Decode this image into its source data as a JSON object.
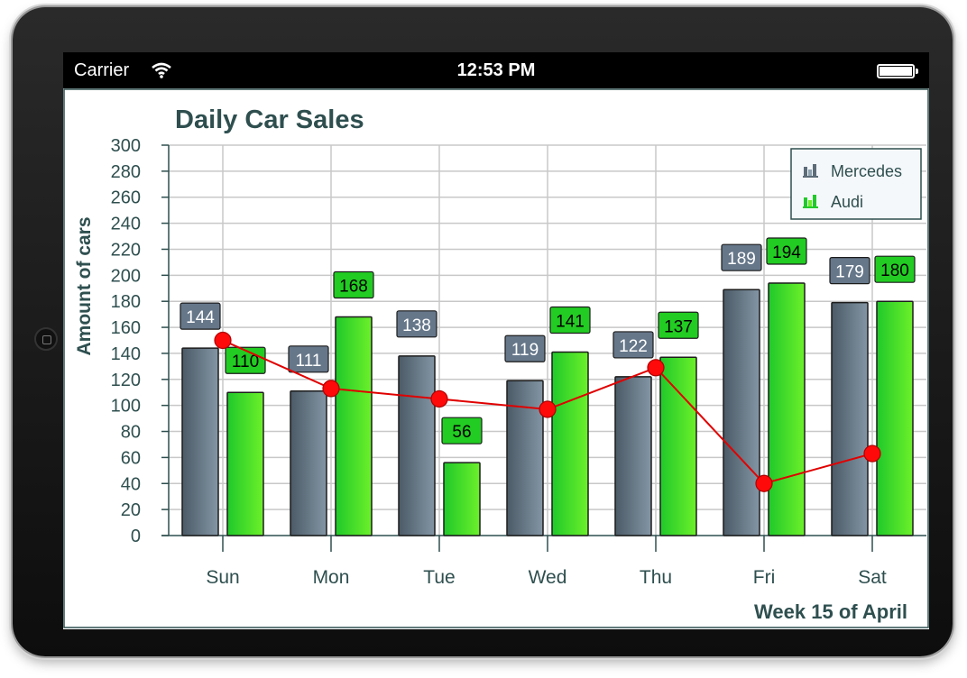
{
  "status_bar": {
    "carrier": "Carrier",
    "time": "12:53 PM"
  },
  "colors": {
    "title": "#2f4f4f",
    "mercedes": "#5a6b78",
    "audi": "#3ad43a",
    "line": "#e00000",
    "grid": "#c8c8c8"
  },
  "chart_data": {
    "type": "bar",
    "title": "Daily Car Sales",
    "xlabel": "Week 15 of April",
    "ylabel": "Amount of cars",
    "ylim": [
      0,
      300
    ],
    "ytick_step": 20,
    "yticks": [
      "0",
      "20",
      "40",
      "60",
      "80",
      "100",
      "120",
      "140",
      "160",
      "180",
      "200",
      "220",
      "240",
      "260",
      "280",
      "300"
    ],
    "categories": [
      "Sun",
      "Mon",
      "Tue",
      "Wed",
      "Thu",
      "Fri",
      "Sat"
    ],
    "series": [
      {
        "name": "Mercedes",
        "type": "bar",
        "values": [
          144,
          111,
          138,
          119,
          122,
          189,
          179
        ]
      },
      {
        "name": "Audi",
        "type": "bar",
        "values": [
          110,
          168,
          56,
          141,
          137,
          194,
          180
        ]
      },
      {
        "name": "",
        "type": "line",
        "values": [
          150,
          113,
          105,
          97,
          129,
          40,
          63
        ]
      }
    ],
    "legend_position": "top-right",
    "grid": true
  }
}
